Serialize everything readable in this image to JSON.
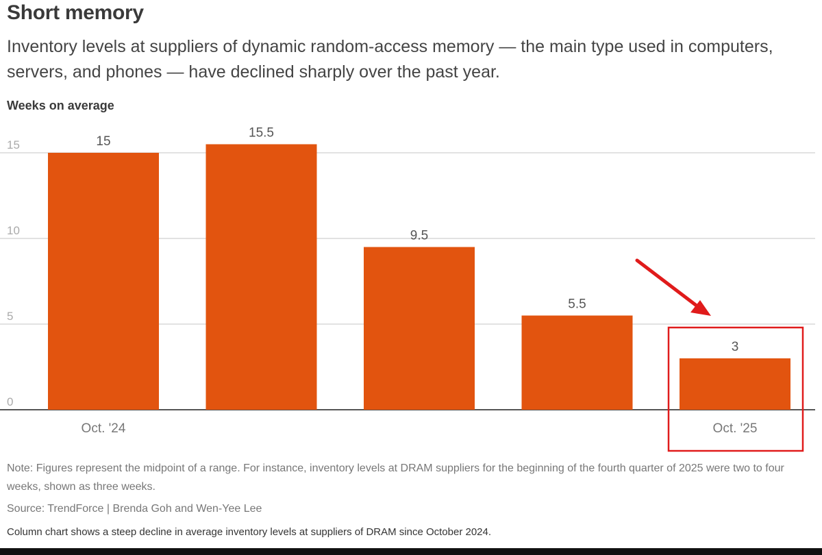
{
  "header": {
    "title": "Short memory",
    "subtitle": "Inventory levels at suppliers of dynamic random-access memory — the main type used in computers, servers, and phones — have declined sharply over the past year."
  },
  "chart_data": {
    "type": "bar",
    "ylabel": "Weeks on average",
    "categories": [
      "Oct. '24",
      "",
      "",
      "",
      "Oct. '25"
    ],
    "values": [
      15,
      15.5,
      9.5,
      5.5,
      3
    ],
    "data_labels": [
      "15",
      "15.5",
      "9.5",
      "5.5",
      "3"
    ],
    "yticks": [
      0,
      5,
      10,
      15
    ],
    "ytick_labels": [
      "0",
      "5",
      "10",
      "15"
    ],
    "ylim": [
      0,
      16
    ],
    "grid": true,
    "bar_color": "#e2540f",
    "annotation": {
      "type": "highlight-box-with-arrow",
      "target_index": 4,
      "color": "#e01b1b"
    }
  },
  "footer": {
    "note": "Note: Figures represent the midpoint of a range. For instance, inventory levels at DRAM suppliers for the beginning of the fourth quarter of 2025 were two to four weeks, shown as three weeks.",
    "source": "Source: TrendForce | Brenda Goh and Wen-Yee Lee",
    "alt_text": "Column chart shows a steep decline in average inventory levels at suppliers of DRAM since October 2024."
  }
}
